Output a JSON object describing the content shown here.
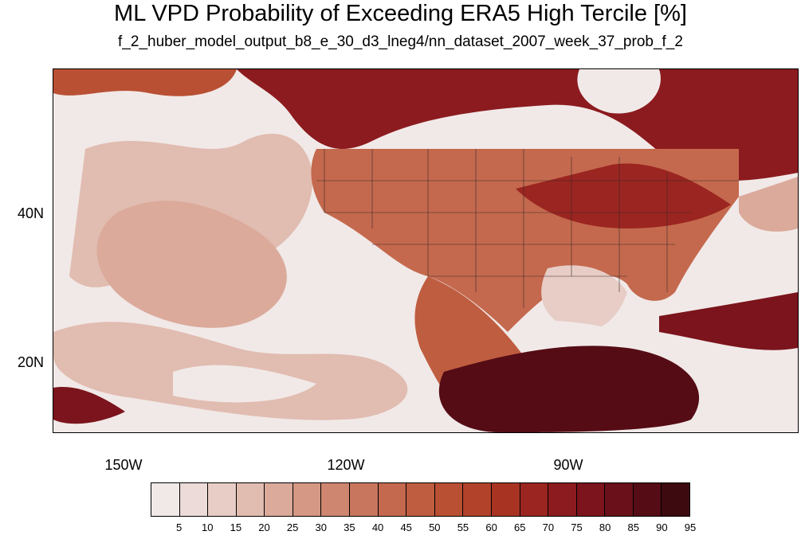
{
  "title": "ML VPD Probability of Exceeding ERA5 High Tercile [%]",
  "subtitle": "f_2_huber_model_output_b8_e_30_d3_lneg4/nn_dataset_2007_week_37_prob_f_2",
  "map": {
    "lat_labels": [
      "40N",
      "20N"
    ],
    "lon_labels": [
      "150W",
      "120W",
      "90W"
    ],
    "lon_range": [
      -160,
      -60
    ],
    "lat_range": [
      10,
      59
    ]
  },
  "colorbar": {
    "labels": [
      "5",
      "10",
      "15",
      "20",
      "25",
      "30",
      "35",
      "40",
      "45",
      "50",
      "55",
      "60",
      "65",
      "70",
      "75",
      "80",
      "85",
      "90",
      "95"
    ],
    "colors": [
      "#f1e9e8",
      "#ecdbd8",
      "#e7cdc6",
      "#e1bcb0",
      "#dbaa9b",
      "#d59884",
      "#cf8670",
      "#c9765e",
      "#c4694e",
      "#bf5d40",
      "#b95033",
      "#b24229",
      "#a83323",
      "#9b2520",
      "#8c1b1f",
      "#7b141c",
      "#69101a",
      "#550c15",
      "#3d0a10"
    ]
  }
}
